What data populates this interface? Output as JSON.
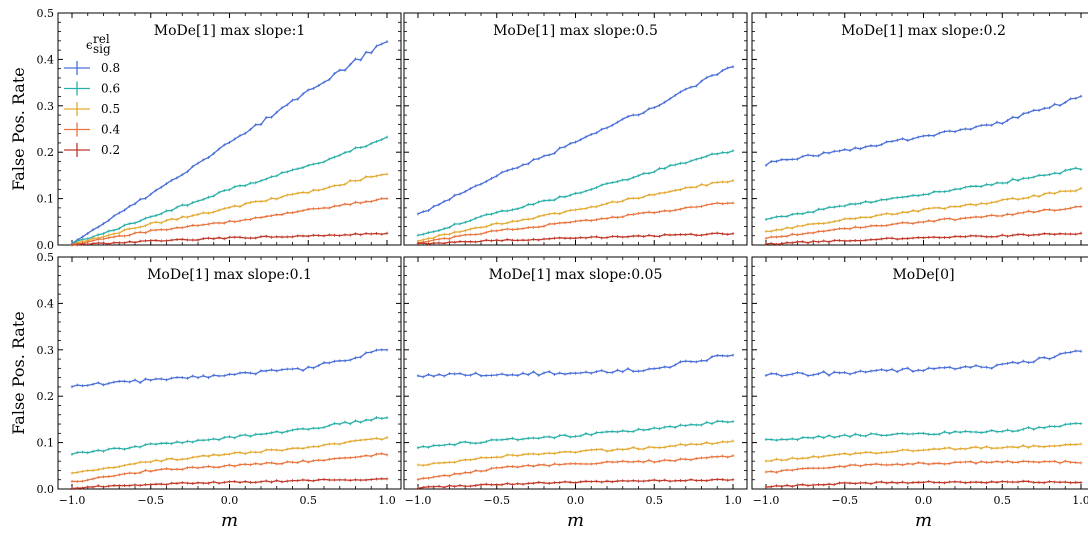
{
  "chart_data": {
    "type": "line",
    "figure": {
      "ylabel": "False Pos. Rate",
      "xlabel": "m",
      "xlim": [
        -1.0,
        1.0
      ],
      "ylim": [
        0.0,
        0.5
      ],
      "xticks": [
        "−1.0",
        "−0.5",
        "0.0",
        "0.5",
        "1.0"
      ],
      "yticks": [
        "0.0",
        "0.1",
        "0.2",
        "0.3",
        "0.4",
        "0.5"
      ],
      "legend": {
        "title": "ε_sig^rel",
        "title_main": "ϵ",
        "title_sup": "rel",
        "title_sub": "sig",
        "placement": "upper-left of first panel",
        "entries": [
          "0.8",
          "0.6",
          "0.5",
          "0.4",
          "0.2"
        ]
      },
      "colors": [
        "#4a6fd8",
        "#2bb0a8",
        "#e3aa33",
        "#e8753f",
        "#c0392b"
      ]
    },
    "panels": [
      {
        "title": "MoDe[1] max slope:1",
        "series": [
          {
            "legend": "0.8",
            "x": [
              -1.0,
              -0.5,
              0.0,
              0.5,
              1.0
            ],
            "y": [
              0.005,
              0.11,
              0.22,
              0.33,
              0.44
            ]
          },
          {
            "legend": "0.6",
            "x": [
              -1.0,
              -0.5,
              0.0,
              0.5,
              1.0
            ],
            "y": [
              0.003,
              0.06,
              0.12,
              0.17,
              0.23
            ]
          },
          {
            "legend": "0.5",
            "x": [
              -1.0,
              -0.5,
              0.0,
              0.5,
              1.0
            ],
            "y": [
              0.002,
              0.045,
              0.08,
              0.115,
              0.155
            ]
          },
          {
            "legend": "0.4",
            "x": [
              -1.0,
              -0.5,
              0.0,
              0.5,
              1.0
            ],
            "y": [
              0.001,
              0.03,
              0.05,
              0.075,
              0.1
            ]
          },
          {
            "legend": "0.2",
            "x": [
              -1.0,
              -0.5,
              0.0,
              0.5,
              1.0
            ],
            "y": [
              0.0,
              0.008,
              0.015,
              0.02,
              0.025
            ]
          }
        ]
      },
      {
        "title": "MoDe[1] max slope:0.5",
        "series": [
          {
            "legend": "0.8",
            "x": [
              -1.0,
              -0.5,
              0.0,
              0.5,
              1.0
            ],
            "y": [
              0.065,
              0.15,
              0.22,
              0.3,
              0.385
            ]
          },
          {
            "legend": "0.6",
            "x": [
              -1.0,
              -0.5,
              0.0,
              0.5,
              1.0
            ],
            "y": [
              0.02,
              0.07,
              0.11,
              0.16,
              0.205
            ]
          },
          {
            "legend": "0.5",
            "x": [
              -1.0,
              -0.5,
              0.0,
              0.5,
              1.0
            ],
            "y": [
              0.01,
              0.045,
              0.075,
              0.11,
              0.14
            ]
          },
          {
            "legend": "0.4",
            "x": [
              -1.0,
              -0.5,
              0.0,
              0.5,
              1.0
            ],
            "y": [
              0.005,
              0.03,
              0.05,
              0.07,
              0.093
            ]
          },
          {
            "legend": "0.2",
            "x": [
              -1.0,
              -0.5,
              0.0,
              0.5,
              1.0
            ],
            "y": [
              0.002,
              0.01,
              0.015,
              0.02,
              0.025
            ]
          }
        ]
      },
      {
        "title": "MoDe[1] max slope:0.2",
        "series": [
          {
            "legend": "0.8",
            "x": [
              -1.0,
              -0.5,
              0.0,
              0.5,
              1.0
            ],
            "y": [
              0.175,
              0.205,
              0.235,
              0.265,
              0.32
            ]
          },
          {
            "legend": "0.6",
            "x": [
              -1.0,
              -0.5,
              0.0,
              0.5,
              1.0
            ],
            "y": [
              0.055,
              0.085,
              0.11,
              0.135,
              0.165
            ]
          },
          {
            "legend": "0.5",
            "x": [
              -1.0,
              -0.5,
              0.0,
              0.5,
              1.0
            ],
            "y": [
              0.03,
              0.055,
              0.075,
              0.095,
              0.12
            ]
          },
          {
            "legend": "0.4",
            "x": [
              -1.0,
              -0.5,
              0.0,
              0.5,
              1.0
            ],
            "y": [
              0.015,
              0.035,
              0.05,
              0.065,
              0.082
            ]
          },
          {
            "legend": "0.2",
            "x": [
              -1.0,
              -0.5,
              0.0,
              0.5,
              1.0
            ],
            "y": [
              0.002,
              0.01,
              0.015,
              0.02,
              0.025
            ]
          }
        ]
      },
      {
        "title": "MoDe[1] max slope:0.1",
        "series": [
          {
            "legend": "0.8",
            "x": [
              -1.0,
              -0.5,
              0.0,
              0.5,
              1.0
            ],
            "y": [
              0.22,
              0.235,
              0.245,
              0.26,
              0.3
            ]
          },
          {
            "legend": "0.6",
            "x": [
              -1.0,
              -0.5,
              0.0,
              0.5,
              1.0
            ],
            "y": [
              0.075,
              0.095,
              0.11,
              0.13,
              0.155
            ]
          },
          {
            "legend": "0.5",
            "x": [
              -1.0,
              -0.5,
              0.0,
              0.5,
              1.0
            ],
            "y": [
              0.035,
              0.06,
              0.075,
              0.09,
              0.11
            ]
          },
          {
            "legend": "0.4",
            "x": [
              -1.0,
              -0.5,
              0.0,
              0.5,
              1.0
            ],
            "y": [
              0.015,
              0.04,
              0.05,
              0.06,
              0.075
            ]
          },
          {
            "legend": "0.2",
            "x": [
              -1.0,
              -0.5,
              0.0,
              0.5,
              1.0
            ],
            "y": [
              0.003,
              0.01,
              0.015,
              0.018,
              0.022
            ]
          }
        ]
      },
      {
        "title": "MoDe[1] max slope:0.05",
        "series": [
          {
            "legend": "0.8",
            "x": [
              -1.0,
              -0.5,
              0.0,
              0.5,
              1.0
            ],
            "y": [
              0.245,
              0.248,
              0.25,
              0.26,
              0.29
            ]
          },
          {
            "legend": "0.6",
            "x": [
              -1.0,
              -0.5,
              0.0,
              0.5,
              1.0
            ],
            "y": [
              0.09,
              0.105,
              0.115,
              0.13,
              0.148
            ]
          },
          {
            "legend": "0.5",
            "x": [
              -1.0,
              -0.5,
              0.0,
              0.5,
              1.0
            ],
            "y": [
              0.05,
              0.07,
              0.08,
              0.09,
              0.103
            ]
          },
          {
            "legend": "0.4",
            "x": [
              -1.0,
              -0.5,
              0.0,
              0.5,
              1.0
            ],
            "y": [
              0.02,
              0.045,
              0.055,
              0.06,
              0.07
            ]
          },
          {
            "legend": "0.2",
            "x": [
              -1.0,
              -0.5,
              0.0,
              0.5,
              1.0
            ],
            "y": [
              0.003,
              0.01,
              0.015,
              0.018,
              0.02
            ]
          }
        ]
      },
      {
        "title": "MoDe[0]",
        "series": [
          {
            "legend": "0.8",
            "x": [
              -1.0,
              -0.5,
              0.0,
              0.5,
              1.0
            ],
            "y": [
              0.245,
              0.25,
              0.258,
              0.265,
              0.295
            ]
          },
          {
            "legend": "0.6",
            "x": [
              -1.0,
              -0.5,
              0.0,
              0.5,
              1.0
            ],
            "y": [
              0.105,
              0.115,
              0.12,
              0.125,
              0.14
            ]
          },
          {
            "legend": "0.5",
            "x": [
              -1.0,
              -0.5,
              0.0,
              0.5,
              1.0
            ],
            "y": [
              0.06,
              0.075,
              0.085,
              0.09,
              0.095
            ]
          },
          {
            "legend": "0.4",
            "x": [
              -1.0,
              -0.5,
              0.0,
              0.5,
              1.0
            ],
            "y": [
              0.035,
              0.05,
              0.055,
              0.058,
              0.058
            ]
          },
          {
            "legend": "0.2",
            "x": [
              -1.0,
              -0.5,
              0.0,
              0.5,
              1.0
            ],
            "y": [
              0.005,
              0.012,
              0.015,
              0.015,
              0.015
            ]
          }
        ]
      }
    ]
  }
}
